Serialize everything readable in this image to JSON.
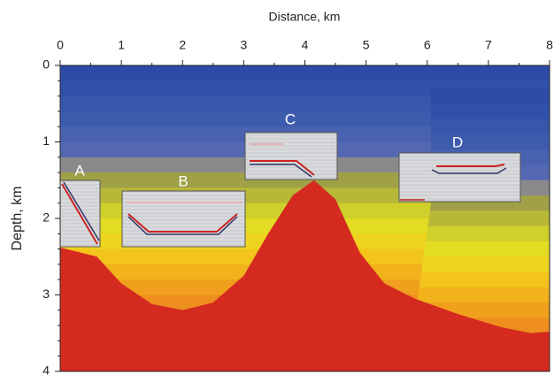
{
  "chart_data": {
    "type": "model",
    "xlabel": "Distance, km",
    "ylabel": "Depth, km",
    "xlim": [
      0,
      8
    ],
    "ylim": [
      0,
      4
    ],
    "xticks": [
      0,
      1,
      2,
      3,
      4,
      5,
      6,
      7,
      8
    ],
    "yticks": [
      0,
      1,
      2,
      3,
      4
    ],
    "annotations": [
      "A",
      "B",
      "C",
      "D"
    ],
    "layer_colors": [
      "#2c4aa6",
      "#3150a9",
      "#3756ac",
      "#3e5cae",
      "#4862b0",
      "#5468b2",
      "#8a8a8c",
      "#a0a048",
      "#b8b838",
      "#d0d02a",
      "#e2dc22",
      "#eed41e",
      "#f2c41c",
      "#f2b21c",
      "#f0a01c",
      "#ee8e1e",
      "#ea7a20",
      "#e46a20",
      "#e05e22",
      "#dc5422"
    ],
    "body_color": "#d42a20"
  }
}
